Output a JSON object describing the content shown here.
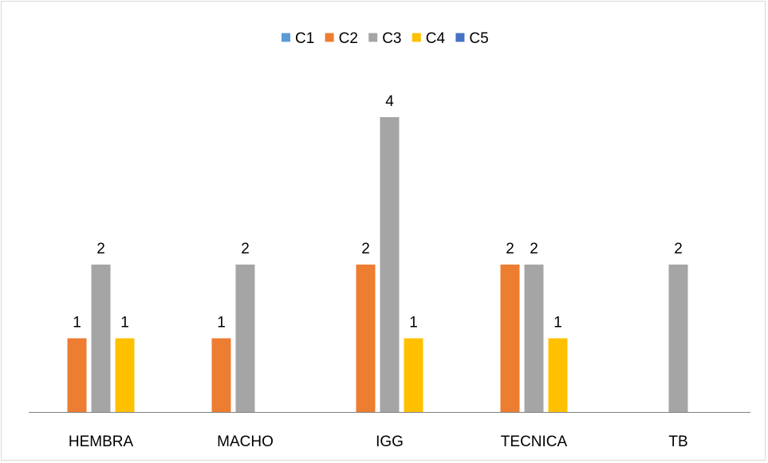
{
  "chart_data": {
    "type": "bar",
    "categories": [
      "HEMBRA",
      "MACHO",
      "IGG",
      "TECNICA",
      "TB"
    ],
    "series": [
      {
        "name": "C1",
        "color": "#5B9BD5",
        "values": [
          0,
          0,
          0,
          0,
          0
        ]
      },
      {
        "name": "C2",
        "color": "#ED7D31",
        "values": [
          1,
          1,
          2,
          2,
          0
        ]
      },
      {
        "name": "C3",
        "color": "#A5A5A5",
        "values": [
          2,
          2,
          4,
          2,
          2
        ]
      },
      {
        "name": "C4",
        "color": "#FFC000",
        "values": [
          1,
          0,
          1,
          1,
          0
        ]
      },
      {
        "name": "C5",
        "color": "#4472C4",
        "values": [
          0,
          0,
          0,
          0,
          0
        ]
      }
    ],
    "ylim": [
      0,
      4
    ],
    "grid": false,
    "legend_position": "top",
    "show_data_labels": true,
    "axis_color": "#808080"
  }
}
